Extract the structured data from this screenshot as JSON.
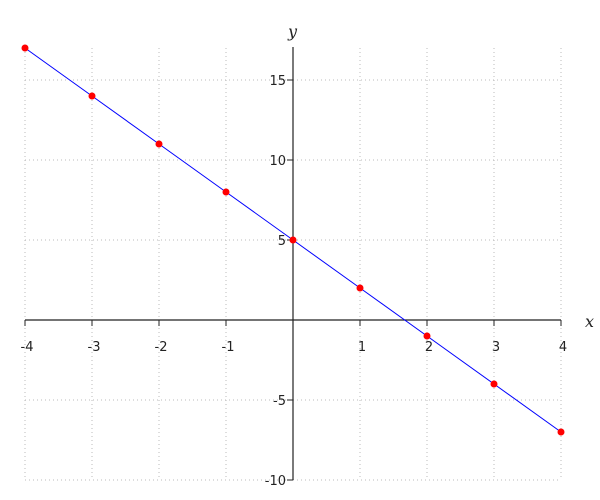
{
  "chart_data": {
    "type": "line",
    "title": "",
    "xlabel": "x",
    "ylabel": "y",
    "xlim": [
      -4,
      4
    ],
    "ylim": [
      -10,
      17
    ],
    "x_ticks": [
      -4,
      -3,
      -2,
      -1,
      1,
      2,
      3,
      4
    ],
    "y_ticks": [
      -10,
      -5,
      5,
      10,
      15
    ],
    "grid": true,
    "grid_style": "dotted",
    "line_color": "#0000ff",
    "marker_color": "#ff0000",
    "series": [
      {
        "x": [
          -4,
          -3,
          -2,
          -1,
          0,
          1,
          2,
          3,
          4
        ],
        "y": [
          17,
          14,
          11,
          8,
          5,
          2,
          -1,
          -4,
          -7
        ]
      }
    ]
  }
}
